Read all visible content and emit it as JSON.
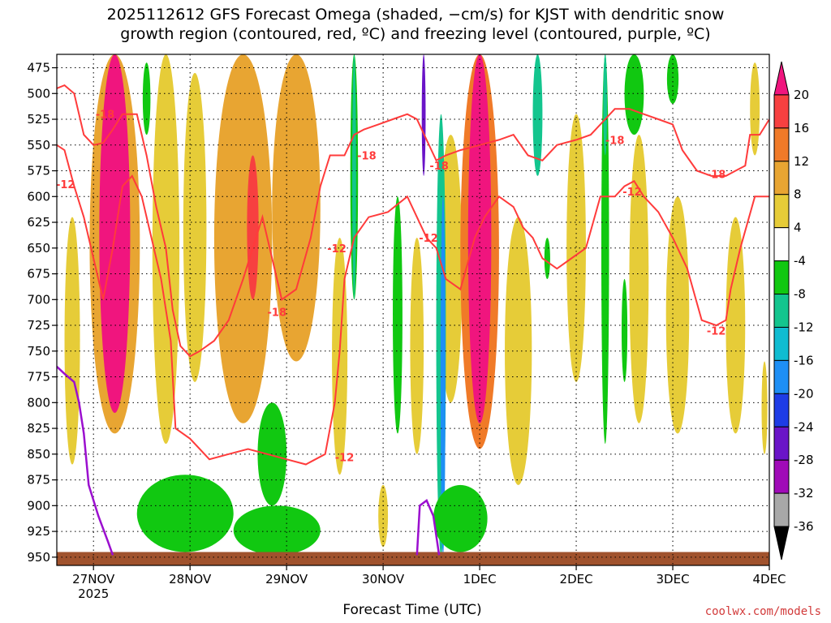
{
  "chart_data": {
    "type": "heatmap",
    "title_lines": [
      "2025112612 GFS Forecast Omega (shaded, −cm/s) for KJST with dendritic snow",
      "growth region (contoured, red, ºC) and freezing level (contoured, purple, ºC)"
    ],
    "xlabel": "Forecast Time (UTC)",
    "credit": "coolwx.com/models",
    "x_ticks": [
      {
        "label": "27NOV",
        "sub": "2025",
        "day": 0.5
      },
      {
        "label": "28NOV",
        "sub": "",
        "day": 1.5
      },
      {
        "label": "29NOV",
        "sub": "",
        "day": 2.5
      },
      {
        "label": "30NOV",
        "sub": "",
        "day": 3.5
      },
      {
        "label": "1DEC",
        "sub": "",
        "day": 4.5
      },
      {
        "label": "2DEC",
        "sub": "",
        "day": 5.5
      },
      {
        "label": "3DEC",
        "sub": "",
        "day": 6.5
      },
      {
        "label": "4DEC",
        "sub": "",
        "day": 7.5
      }
    ],
    "xlim_days": [
      0.12,
      7.5
    ],
    "y_ticks": [
      475,
      500,
      525,
      550,
      575,
      600,
      625,
      650,
      675,
      700,
      725,
      750,
      775,
      800,
      825,
      850,
      875,
      900,
      925,
      950
    ],
    "ylim_hpa": [
      462,
      958
    ],
    "colorbar": {
      "levels": [
        -36,
        -32,
        -28,
        -24,
        -20,
        -16,
        -12,
        -8,
        -4,
        4,
        8,
        12,
        16,
        20
      ],
      "labels": [
        "20",
        "16",
        "12",
        "8",
        "4",
        "-4",
        "-8",
        "-12",
        "-16",
        "-20",
        "-24",
        "-28",
        "-32",
        "-36"
      ],
      "colors": {
        "over": "#f0157e",
        "c16_20": "#f74040",
        "c12_16": "#f07a28",
        "c8_12": "#e8a532",
        "c4_8": "#e6cc38",
        "c0_4": "#ece23c",
        "neutral": "#ffffff",
        "cm8_m4": "#11c811",
        "cm12_m8": "#13c58e",
        "cm16_m12": "#0fbcd1",
        "cm20_m16": "#1e8ff5",
        "cm24_m20": "#1e3ce6",
        "cm28_m24": "#6a14c8",
        "cm32_m28": "#a00ab8",
        "cm36_m32": "#a8a8a8",
        "under": "#000000"
      }
    },
    "omega_features": [
      {
        "day": 0.28,
        "p_top": 620,
        "p_bot": 860,
        "half_width_days": 0.08,
        "value": 6
      },
      {
        "day": 0.72,
        "p_top": 462,
        "p_bot": 830,
        "half_width_days": 0.26,
        "value": 11
      },
      {
        "day": 0.72,
        "p_top": 462,
        "p_bot": 810,
        "half_width_days": 0.16,
        "value": 22
      },
      {
        "day": 1.25,
        "p_top": 462,
        "p_bot": 840,
        "half_width_days": 0.14,
        "value": 5
      },
      {
        "day": 1.55,
        "p_top": 480,
        "p_bot": 780,
        "half_width_days": 0.12,
        "value": 7
      },
      {
        "day": 2.05,
        "p_top": 462,
        "p_bot": 820,
        "half_width_days": 0.3,
        "value": 9
      },
      {
        "day": 2.15,
        "p_top": 560,
        "p_bot": 700,
        "half_width_days": 0.06,
        "value": 17
      },
      {
        "day": 2.6,
        "p_top": 462,
        "p_bot": 760,
        "half_width_days": 0.25,
        "value": 10
      },
      {
        "day": 3.05,
        "p_top": 640,
        "p_bot": 870,
        "half_width_days": 0.08,
        "value": 5
      },
      {
        "day": 3.5,
        "p_top": 880,
        "p_bot": 940,
        "half_width_days": 0.05,
        "value": 5
      },
      {
        "day": 3.85,
        "p_top": 640,
        "p_bot": 850,
        "half_width_days": 0.07,
        "value": 5
      },
      {
        "day": 4.2,
        "p_top": 540,
        "p_bot": 800,
        "half_width_days": 0.12,
        "value": 6
      },
      {
        "day": 4.5,
        "p_top": 462,
        "p_bot": 845,
        "half_width_days": 0.2,
        "value": 12
      },
      {
        "day": 4.5,
        "p_top": 462,
        "p_bot": 820,
        "half_width_days": 0.12,
        "value": 22
      },
      {
        "day": 4.9,
        "p_top": 620,
        "p_bot": 880,
        "half_width_days": 0.14,
        "value": 5
      },
      {
        "day": 5.5,
        "p_top": 520,
        "p_bot": 780,
        "half_width_days": 0.1,
        "value": 5
      },
      {
        "day": 6.15,
        "p_top": 540,
        "p_bot": 820,
        "half_width_days": 0.1,
        "value": 5
      },
      {
        "day": 6.55,
        "p_top": 600,
        "p_bot": 830,
        "half_width_days": 0.12,
        "value": 5
      },
      {
        "day": 7.15,
        "p_top": 620,
        "p_bot": 830,
        "half_width_days": 0.1,
        "value": 5
      },
      {
        "day": 7.35,
        "p_top": 470,
        "p_bot": 560,
        "half_width_days": 0.05,
        "value": 5
      },
      {
        "day": 7.45,
        "p_top": 760,
        "p_bot": 850,
        "half_width_days": 0.03,
        "value": 5
      },
      {
        "day": 1.05,
        "p_top": 470,
        "p_bot": 540,
        "half_width_days": 0.04,
        "value": -6
      },
      {
        "day": 1.45,
        "p_top": 870,
        "p_bot": 945,
        "half_width_days": 0.5,
        "value": -6
      },
      {
        "day": 2.4,
        "p_top": 900,
        "p_bot": 948,
        "half_width_days": 0.45,
        "value": -6
      },
      {
        "day": 2.35,
        "p_top": 800,
        "p_bot": 900,
        "half_width_days": 0.15,
        "value": -6
      },
      {
        "day": 3.2,
        "p_top": 462,
        "p_bot": 700,
        "half_width_days": 0.04,
        "value": -6
      },
      {
        "day": 3.2,
        "p_top": 462,
        "p_bot": 700,
        "half_width_days": 0.02,
        "value": -10
      },
      {
        "day": 3.65,
        "p_top": 600,
        "p_bot": 830,
        "half_width_days": 0.05,
        "value": -6
      },
      {
        "day": 4.1,
        "p_top": 520,
        "p_bot": 948,
        "half_width_days": 0.05,
        "value": -10
      },
      {
        "day": 4.12,
        "p_top": 600,
        "p_bot": 948,
        "half_width_days": 0.025,
        "value": -17
      },
      {
        "day": 3.92,
        "p_top": 462,
        "p_bot": 580,
        "half_width_days": 0.02,
        "value": -26
      },
      {
        "day": 4.3,
        "p_top": 880,
        "p_bot": 945,
        "half_width_days": 0.28,
        "value": -6
      },
      {
        "day": 5.1,
        "p_top": 462,
        "p_bot": 580,
        "half_width_days": 0.05,
        "value": -10
      },
      {
        "day": 5.2,
        "p_top": 640,
        "p_bot": 680,
        "half_width_days": 0.03,
        "value": -6
      },
      {
        "day": 5.8,
        "p_top": 462,
        "p_bot": 840,
        "half_width_days": 0.04,
        "value": -6
      },
      {
        "day": 5.8,
        "p_top": 462,
        "p_bot": 560,
        "half_width_days": 0.02,
        "value": -10
      },
      {
        "day": 6.1,
        "p_top": 462,
        "p_bot": 540,
        "half_width_days": 0.1,
        "value": -6
      },
      {
        "day": 6.5,
        "p_top": 462,
        "p_bot": 510,
        "half_width_days": 0.06,
        "value": -6
      },
      {
        "day": 6.0,
        "p_top": 680,
        "p_bot": 780,
        "half_width_days": 0.03,
        "value": -6
      }
    ],
    "ground_level_hpa": 945,
    "dgz_contours": [
      {
        "value": -18,
        "label": "-18",
        "points": [
          [
            0.12,
            495
          ],
          [
            0.2,
            492
          ],
          [
            0.3,
            500
          ],
          [
            0.4,
            540
          ],
          [
            0.5,
            550
          ],
          [
            0.6,
            548
          ],
          [
            0.7,
            535
          ],
          [
            0.8,
            520
          ],
          [
            0.95,
            520
          ],
          [
            1.05,
            560
          ],
          [
            1.15,
            610
          ],
          [
            1.25,
            650
          ],
          [
            1.32,
            710
          ],
          [
            1.4,
            745
          ],
          [
            1.5,
            755
          ],
          [
            1.6,
            750
          ],
          [
            1.75,
            740
          ],
          [
            1.9,
            720
          ],
          [
            2.05,
            680
          ],
          [
            2.25,
            620
          ],
          [
            2.45,
            700
          ],
          [
            2.6,
            690
          ],
          [
            2.75,
            640
          ],
          [
            2.85,
            590
          ],
          [
            2.95,
            560
          ],
          [
            3.1,
            560
          ],
          [
            3.2,
            540
          ],
          [
            3.3,
            535
          ],
          [
            3.45,
            530
          ],
          [
            3.6,
            525
          ],
          [
            3.75,
            520
          ],
          [
            3.85,
            525
          ],
          [
            3.95,
            545
          ],
          [
            4.05,
            565
          ],
          [
            4.15,
            560
          ],
          [
            4.3,
            555
          ],
          [
            4.5,
            550
          ],
          [
            4.7,
            545
          ],
          [
            4.85,
            540
          ],
          [
            5.0,
            560
          ],
          [
            5.15,
            565
          ],
          [
            5.3,
            550
          ],
          [
            5.5,
            545
          ],
          [
            5.65,
            540
          ],
          [
            5.8,
            525
          ],
          [
            5.9,
            515
          ],
          [
            6.05,
            515
          ],
          [
            6.2,
            520
          ],
          [
            6.35,
            525
          ],
          [
            6.5,
            530
          ],
          [
            6.6,
            555
          ],
          [
            6.75,
            575
          ],
          [
            6.9,
            580
          ],
          [
            7.05,
            580
          ],
          [
            7.15,
            575
          ],
          [
            7.25,
            570
          ],
          [
            7.3,
            540
          ],
          [
            7.4,
            540
          ],
          [
            7.5,
            525
          ]
        ]
      },
      {
        "value": -12,
        "label": "-12",
        "points": [
          [
            0.12,
            550
          ],
          [
            0.2,
            555
          ],
          [
            0.3,
            590
          ],
          [
            0.4,
            620
          ],
          [
            0.5,
            660
          ],
          [
            0.6,
            700
          ],
          [
            0.7,
            650
          ],
          [
            0.8,
            590
          ],
          [
            0.9,
            580
          ],
          [
            1.0,
            600
          ],
          [
            1.1,
            640
          ],
          [
            1.2,
            680
          ],
          [
            1.3,
            740
          ],
          [
            1.35,
            825
          ],
          [
            1.5,
            835
          ],
          [
            1.7,
            855
          ],
          [
            1.9,
            850
          ],
          [
            2.1,
            845
          ],
          [
            2.3,
            850
          ],
          [
            2.5,
            855
          ],
          [
            2.7,
            860
          ],
          [
            2.9,
            850
          ],
          [
            3.0,
            800
          ],
          [
            3.05,
            750
          ],
          [
            3.1,
            680
          ],
          [
            3.2,
            640
          ],
          [
            3.35,
            620
          ],
          [
            3.55,
            615
          ],
          [
            3.75,
            600
          ],
          [
            3.85,
            620
          ],
          [
            3.95,
            640
          ],
          [
            4.05,
            650
          ],
          [
            4.15,
            680
          ],
          [
            4.3,
            690
          ],
          [
            4.45,
            640
          ],
          [
            4.55,
            620
          ],
          [
            4.7,
            600
          ],
          [
            4.85,
            610
          ],
          [
            4.95,
            630
          ],
          [
            5.05,
            640
          ],
          [
            5.15,
            660
          ],
          [
            5.3,
            670
          ],
          [
            5.45,
            660
          ],
          [
            5.6,
            650
          ],
          [
            5.75,
            600
          ],
          [
            5.9,
            600
          ],
          [
            6.0,
            590
          ],
          [
            6.1,
            585
          ],
          [
            6.2,
            600
          ],
          [
            6.35,
            615
          ],
          [
            6.5,
            640
          ],
          [
            6.65,
            670
          ],
          [
            6.8,
            720
          ],
          [
            6.95,
            725
          ],
          [
            7.05,
            720
          ],
          [
            7.1,
            690
          ],
          [
            7.2,
            650
          ],
          [
            7.35,
            600
          ],
          [
            7.5,
            600
          ]
        ]
      }
    ],
    "dgz_labels": [
      {
        "label": "-18",
        "day": 0.62,
        "hpa": 520
      },
      {
        "label": "-12",
        "day": 0.21,
        "hpa": 588
      },
      {
        "label": "-12",
        "day": 3.02,
        "hpa": 650
      },
      {
        "label": "-18",
        "day": 2.4,
        "hpa": 712
      },
      {
        "label": "-18",
        "day": 3.33,
        "hpa": 560
      },
      {
        "label": "-12",
        "day": 3.1,
        "hpa": 853
      },
      {
        "label": "-18",
        "day": 4.08,
        "hpa": 570
      },
      {
        "label": "-12",
        "day": 3.97,
        "hpa": 640
      },
      {
        "label": "-18",
        "day": 5.9,
        "hpa": 545
      },
      {
        "label": "-12",
        "day": 6.08,
        "hpa": 595
      },
      {
        "label": "-18",
        "day": 6.95,
        "hpa": 578
      },
      {
        "label": "-12",
        "day": 6.95,
        "hpa": 730
      }
    ],
    "freezing_level_contours": [
      {
        "points": [
          [
            0.12,
            765
          ],
          [
            0.2,
            772
          ],
          [
            0.3,
            780
          ],
          [
            0.35,
            800
          ],
          [
            0.4,
            830
          ],
          [
            0.45,
            880
          ],
          [
            0.55,
            910
          ],
          [
            0.65,
            935
          ],
          [
            0.7,
            948
          ]
        ]
      },
      {
        "points": [
          [
            3.85,
            948
          ],
          [
            3.88,
            900
          ],
          [
            3.95,
            895
          ],
          [
            4.02,
            910
          ],
          [
            4.08,
            948
          ]
        ]
      }
    ]
  }
}
